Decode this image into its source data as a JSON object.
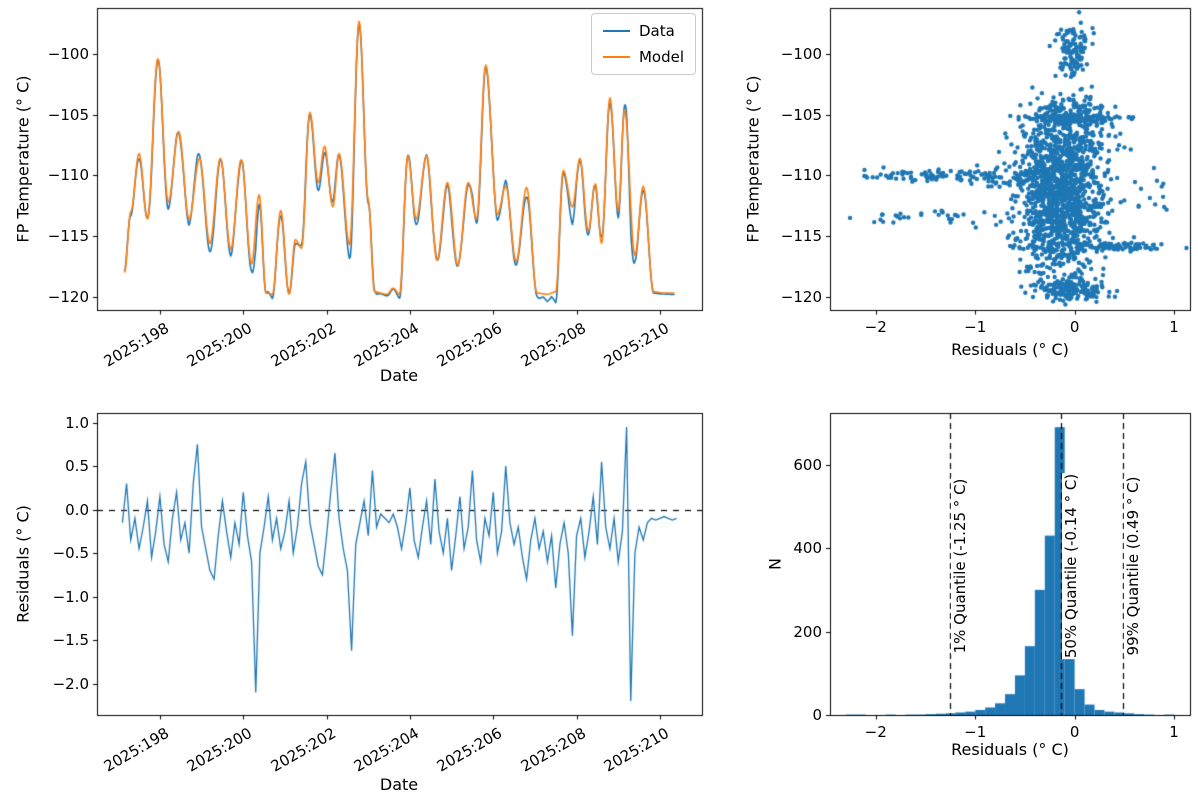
{
  "figure": {
    "background": "#ffffff",
    "accent_blue": "#1f77b4",
    "accent_orange": "#ff7f0e"
  },
  "chart_data": [
    {
      "type": "line",
      "title": "",
      "xlabel": "Date",
      "ylabel": "FP Temperature (° C)",
      "xlim": [
        196.49,
        211.01
      ],
      "ylim": [
        -121.1,
        -96.2
      ],
      "xticks": [
        {
          "value": 198,
          "label": "2025:198"
        },
        {
          "value": 200,
          "label": "2025:200"
        },
        {
          "value": 202,
          "label": "2025:202"
        },
        {
          "value": 204,
          "label": "2025:204"
        },
        {
          "value": 206,
          "label": "2025:206"
        },
        {
          "value": 208,
          "label": "2025:208"
        },
        {
          "value": 210,
          "label": "2025:210"
        }
      ],
      "yticks": [
        {
          "value": -100,
          "label": "−100"
        },
        {
          "value": -105,
          "label": "−105"
        },
        {
          "value": -110,
          "label": "−110"
        },
        {
          "value": -115,
          "label": "−115"
        },
        {
          "value": -120,
          "label": "−120"
        }
      ],
      "legend": {
        "position": "upper right"
      },
      "series": [
        {
          "name": "Data",
          "color": "#1f77b4",
          "rule": "model_keypoints + residuals interpolated"
        },
        {
          "name": "Model",
          "color": "#ff7f0e",
          "rule": "model_keypoints smooth curve"
        }
      ],
      "model_keypoints": {
        "t": [
          197.15,
          197.3,
          197.5,
          197.7,
          197.95,
          198.2,
          198.45,
          198.7,
          198.95,
          199.2,
          199.45,
          199.7,
          199.95,
          200.2,
          200.38,
          200.55,
          200.7,
          200.9,
          201.1,
          201.25,
          201.4,
          201.6,
          201.8,
          201.95,
          202.15,
          202.3,
          202.55,
          202.78,
          203.0,
          203.15,
          203.45,
          203.6,
          203.75,
          203.95,
          204.15,
          204.4,
          204.65,
          204.9,
          205.15,
          205.4,
          205.6,
          205.82,
          206.1,
          206.3,
          206.55,
          206.8,
          207.05,
          207.3,
          207.5,
          207.68,
          207.9,
          208.08,
          208.28,
          208.45,
          208.6,
          208.8,
          209.0,
          209.15,
          209.4,
          209.6,
          209.85,
          210.1,
          210.35
        ],
        "y": [
          -118.0,
          -113.0,
          -108.2,
          -113.6,
          -100.4,
          -112.2,
          -106.4,
          -113.6,
          -108.6,
          -115.6,
          -108.6,
          -116.1,
          -108.7,
          -117.3,
          -111.6,
          -119.7,
          -119.8,
          -112.9,
          -119.8,
          -115.3,
          -116.0,
          -104.8,
          -110.6,
          -107.6,
          -112.6,
          -108.2,
          -115.7,
          -97.3,
          -112.0,
          -119.6,
          -119.8,
          -119.3,
          -119.8,
          -108.4,
          -113.6,
          -108.4,
          -117.0,
          -110.6,
          -117.4,
          -110.6,
          -113.6,
          -100.9,
          -113.2,
          -110.9,
          -117.1,
          -111.0,
          -119.7,
          -119.8,
          -119.6,
          -109.6,
          -112.6,
          -108.6,
          -114.6,
          -110.7,
          -115.6,
          -103.6,
          -112.9,
          -104.6,
          -116.6,
          -110.9,
          -119.6,
          -119.7,
          -119.7
        ]
      }
    },
    {
      "type": "scatter",
      "title": "",
      "xlabel": "Residuals (° C)",
      "ylabel": "FP Temperature (° C)",
      "xlim": [
        -2.46,
        1.16
      ],
      "ylim": [
        -121.1,
        -96.2
      ],
      "xticks": [
        {
          "value": -2,
          "label": "−2"
        },
        {
          "value": -1,
          "label": "−1"
        },
        {
          "value": 0,
          "label": "0"
        },
        {
          "value": 1,
          "label": "1"
        }
      ],
      "yticks": [
        {
          "value": -100,
          "label": "−100"
        },
        {
          "value": -105,
          "label": "−105"
        },
        {
          "value": -110,
          "label": "−110"
        },
        {
          "value": -115,
          "label": "−115"
        },
        {
          "value": -120,
          "label": "−120"
        }
      ],
      "marker": {
        "color": "#1f77b4",
        "radius": 2.2
      },
      "clusters": [
        {
          "n": 1100,
          "cx": -0.15,
          "cy": -112.5,
          "sx": 0.22,
          "sy": 3.0
        },
        {
          "n": 260,
          "cx": -0.1,
          "cy": -108.2,
          "sx": 0.24,
          "sy": 1.6
        },
        {
          "n": 170,
          "cx": -0.05,
          "cy": -104.9,
          "sx": 0.18,
          "sy": 0.8
        },
        {
          "n": 110,
          "cx": -0.02,
          "cy": -99.6,
          "sx": 0.09,
          "sy": 1.1
        },
        {
          "n": 90,
          "cx": -1.35,
          "cy": -110.0,
          "sx": 0.42,
          "sy": 0.22
        },
        {
          "n": 35,
          "cx": -1.45,
          "cy": -113.4,
          "sx": 0.38,
          "sy": 0.3
        },
        {
          "n": 70,
          "cx": 0.5,
          "cy": -115.9,
          "sx": 0.22,
          "sy": 0.18
        },
        {
          "n": 160,
          "cx": -0.05,
          "cy": -119.4,
          "sx": 0.16,
          "sy": 0.45
        },
        {
          "n": 90,
          "cx": 0.0,
          "cy": -105.3,
          "sx": 0.3,
          "sy": 0.12
        },
        {
          "n": 60,
          "cx": -0.6,
          "cy": -110.3,
          "sx": 0.25,
          "sy": 0.6
        },
        {
          "n": 12,
          "cx": 0.75,
          "cy": -111.5,
          "sx": 0.15,
          "sy": 1.2
        }
      ]
    },
    {
      "type": "line",
      "title": "",
      "xlabel": "Date",
      "ylabel": "Residuals (° C)",
      "xlim": [
        196.49,
        211.01
      ],
      "ylim": [
        -2.36,
        1.11
      ],
      "xticks": [
        {
          "value": 198,
          "label": "2025:198"
        },
        {
          "value": 200,
          "label": "2025:200"
        },
        {
          "value": 202,
          "label": "2025:202"
        },
        {
          "value": 204,
          "label": "2025:204"
        },
        {
          "value": 206,
          "label": "2025:206"
        },
        {
          "value": 208,
          "label": "2025:208"
        },
        {
          "value": 210,
          "label": "2025:210"
        }
      ],
      "yticks": [
        {
          "value": 1.0,
          "label": "1.0"
        },
        {
          "value": 0.5,
          "label": "0.5"
        },
        {
          "value": 0.0,
          "label": "0.0"
        },
        {
          "value": -0.5,
          "label": "−0.5"
        },
        {
          "value": -1.0,
          "label": "−1.0"
        },
        {
          "value": -1.5,
          "label": "−1.5"
        },
        {
          "value": -2.0,
          "label": "−2.0"
        }
      ],
      "zero_line": {
        "y": 0,
        "style": "dashed",
        "color": "#000000"
      },
      "series": [
        {
          "name": "Residuals",
          "color": "#1f77b4",
          "t_start": 197.1,
          "t_step": 0.1,
          "y": [
            -0.15,
            0.3,
            -0.35,
            -0.1,
            -0.45,
            -0.2,
            0.1,
            -0.55,
            -0.25,
            0.15,
            -0.4,
            -0.6,
            -0.1,
            0.2,
            -0.35,
            -0.15,
            -0.5,
            0.3,
            0.75,
            -0.2,
            -0.45,
            -0.7,
            -0.8,
            -0.3,
            0.1,
            -0.25,
            -0.55,
            -0.15,
            -0.4,
            0.2,
            -0.3,
            -0.6,
            -2.1,
            -0.5,
            -0.2,
            0.15,
            -0.35,
            -0.1,
            -0.45,
            -0.25,
            0.1,
            -0.5,
            -0.2,
            0.3,
            0.55,
            -0.15,
            -0.4,
            -0.65,
            -0.75,
            -0.3,
            0.2,
            0.65,
            -0.1,
            -0.45,
            -0.7,
            -1.62,
            -0.4,
            -0.15,
            0.1,
            -0.3,
            0.45,
            -0.2,
            -0.05,
            -0.1,
            -0.15,
            -0.05,
            -0.2,
            -0.45,
            -0.15,
            0.25,
            -0.35,
            -0.55,
            -0.2,
            0.1,
            -0.4,
            0.35,
            -0.25,
            -0.5,
            -0.1,
            -0.7,
            -0.3,
            0.15,
            -0.45,
            -0.2,
            0.45,
            -0.35,
            -0.6,
            -0.1,
            -0.3,
            0.2,
            -0.5,
            -0.25,
            0.5,
            -0.15,
            -0.4,
            -0.2,
            -0.55,
            -0.8,
            -0.35,
            -0.1,
            -0.45,
            -0.25,
            -0.6,
            -0.3,
            -0.9,
            -0.4,
            -0.15,
            -0.5,
            -1.45,
            -0.3,
            -0.1,
            -0.55,
            -0.25,
            0.15,
            -0.4,
            0.55,
            -0.2,
            -0.45,
            -0.1,
            -0.6,
            -0.25,
            0.95,
            -2.2,
            -0.5,
            -0.2,
            -0.35,
            -0.15,
            -0.1,
            -0.12,
            -0.1,
            -0.08,
            -0.1,
            -0.12,
            -0.1
          ]
        }
      ]
    },
    {
      "type": "histogram",
      "title": "",
      "xlabel": "Residuals (° C)",
      "ylabel": "N",
      "xlim": [
        -2.46,
        1.16
      ],
      "ylim": [
        0,
        724
      ],
      "xticks": [
        {
          "value": -2,
          "label": "−2"
        },
        {
          "value": -1,
          "label": "−1"
        },
        {
          "value": 0,
          "label": "0"
        },
        {
          "value": 1,
          "label": "1"
        }
      ],
      "yticks": [
        {
          "value": 0,
          "label": "0"
        },
        {
          "value": 200,
          "label": "200"
        },
        {
          "value": 400,
          "label": "400"
        },
        {
          "value": 600,
          "label": "600"
        }
      ],
      "color": "#1f77b4",
      "bin_start": -2.3,
      "bin_width": 0.1,
      "counts": [
        1,
        1,
        0,
        0,
        1,
        0,
        1,
        1,
        2,
        3,
        4,
        6,
        8,
        12,
        18,
        28,
        50,
        95,
        165,
        300,
        430,
        690,
        235,
        62,
        25,
        12,
        8,
        6,
        4,
        2,
        1,
        0,
        1
      ],
      "quantiles": [
        {
          "key": "1",
          "value": -1.25,
          "label": "1% Quantile (-1.25 ° C)"
        },
        {
          "key": "50",
          "value": -0.14,
          "label": "50% Quantile (-0.14 ° C)"
        },
        {
          "key": "99",
          "value": 0.49,
          "label": "99% Quantile (0.49 ° C)"
        }
      ]
    }
  ]
}
